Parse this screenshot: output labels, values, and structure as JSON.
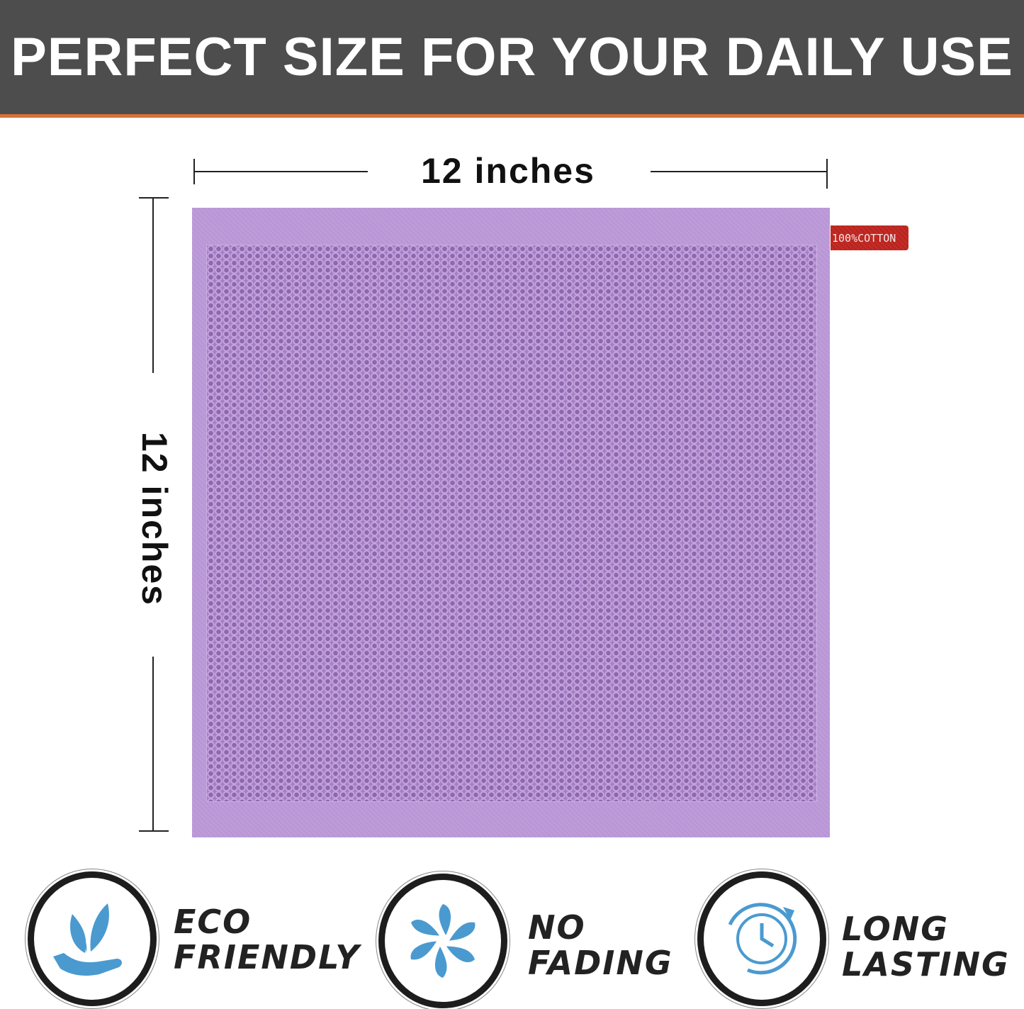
{
  "header": {
    "title": "PERFECT SIZE FOR YOUR DAILY USE"
  },
  "dimensions": {
    "width": "12 inches",
    "height": "12 inches"
  },
  "product": {
    "tag": "100%COTTON",
    "color": "#b996d6"
  },
  "features": [
    {
      "icon": "leaf-hand-icon",
      "line1": "ECO",
      "line2": "FRIENDLY"
    },
    {
      "icon": "pinwheel-icon",
      "line1": "NO",
      "line2": "FADING"
    },
    {
      "icon": "clock-icon",
      "line1": "LONG",
      "line2": "LASTING"
    }
  ],
  "colors": {
    "header": "#4d4d4d",
    "accent": "#d9703a",
    "icon": "#4a9ad0"
  }
}
